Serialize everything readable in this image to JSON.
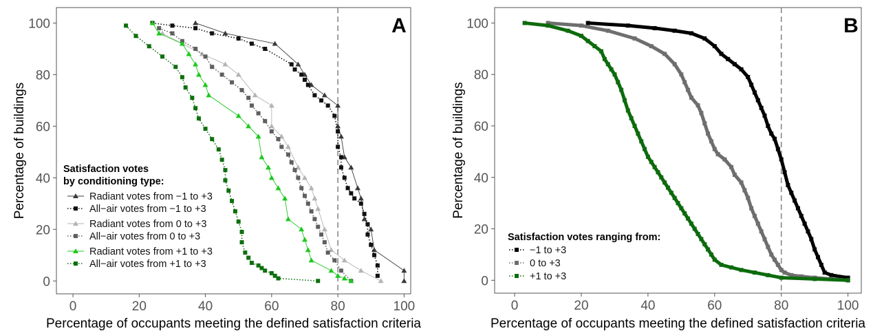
{
  "colors": {
    "radiant_m1": "#3a3a3a",
    "allair_m1": "#111111",
    "radiant_0": "#b4b4b4",
    "allair_0": "#5f5f5f",
    "radiant_p1": "#1ec81e",
    "allair_p1": "#0e6f0e",
    "B_m1": "#000000",
    "B_0": "#6e6e6e",
    "B_p1": "#0d6b0d",
    "refline": "#888888",
    "frame": "#555555"
  },
  "chart_data": [
    {
      "panel": "A",
      "type": "line",
      "xlabel": "Percentage of occupants meeting the defined satisfaction criteria",
      "ylabel": "Percentage of buildings",
      "xlim": [
        -5,
        102
      ],
      "ylim": [
        -5,
        106
      ],
      "xticks": [
        "0",
        "20",
        "40",
        "60",
        "80",
        "100"
      ],
      "yticks": [
        "0",
        "20",
        "40",
        "60",
        "80",
        "100"
      ],
      "reference_line_x": 80,
      "legend": {
        "position": "bottom-left",
        "title_line1": "Satisfaction votes",
        "title_line2": "by conditioning type:"
      },
      "series": [
        {
          "name": "Radiant votes from −1 to +3",
          "marker": "triangle",
          "dash": "solid",
          "color_key": "radiant_m1",
          "x": [
            37,
            46,
            61,
            68,
            70,
            72,
            76,
            80,
            80,
            81,
            82,
            84,
            86,
            87,
            88,
            90,
            91,
            100,
            100
          ],
          "y": [
            100,
            96,
            92,
            84,
            80,
            76,
            72,
            68,
            60,
            56,
            48,
            44,
            36,
            32,
            24,
            20,
            12,
            4,
            0
          ]
        },
        {
          "name": "All−air votes from −1 to +3",
          "marker": "square",
          "dash": "dotted",
          "color_key": "allair_m1",
          "x": [
            24,
            30,
            37,
            42,
            50,
            54,
            58,
            66,
            67,
            69,
            70,
            71,
            73,
            75,
            77,
            79,
            80,
            80,
            81,
            81,
            82,
            83,
            84,
            85,
            87,
            88,
            89,
            89,
            90,
            91,
            92,
            92
          ],
          "y": [
            100,
            99,
            98,
            96,
            94,
            92,
            90,
            84,
            82,
            80,
            78,
            76,
            72,
            70,
            68,
            64,
            58,
            52,
            48,
            44,
            40,
            36,
            34,
            32,
            30,
            26,
            22,
            18,
            14,
            10,
            6,
            2
          ]
        },
        {
          "name": "Radiant votes from 0 to +3",
          "marker": "triangle",
          "dash": "solid",
          "color_key": "radiant_0",
          "x": [
            27,
            33,
            39,
            46,
            50,
            55,
            60,
            60,
            63,
            65,
            68,
            70,
            72,
            73,
            74,
            76,
            78,
            82,
            87,
            93
          ],
          "y": [
            96,
            92,
            88,
            84,
            80,
            72,
            68,
            60,
            56,
            52,
            44,
            40,
            36,
            32,
            28,
            20,
            12,
            8,
            4,
            0
          ]
        },
        {
          "name": "All−air votes from 0 to +3",
          "marker": "square",
          "dash": "dotted",
          "color_key": "allair_0",
          "x": [
            26,
            30,
            33,
            37,
            40,
            42,
            45,
            48,
            51,
            53,
            54,
            56,
            58,
            60,
            62,
            63,
            65,
            66,
            67,
            68,
            69,
            70,
            71,
            72,
            73,
            74,
            75,
            76,
            77,
            79,
            81,
            84
          ],
          "y": [
            98,
            96,
            93,
            90,
            87,
            83,
            80,
            77,
            74,
            71,
            68,
            65,
            62,
            58,
            55,
            52,
            49,
            46,
            43,
            40,
            36,
            33,
            30,
            27,
            24,
            21,
            18,
            15,
            11,
            8,
            4,
            0
          ]
        },
        {
          "name": "Radiant votes from +1 to +3",
          "marker": "triangle",
          "dash": "solid",
          "color_key": "radiant_p1",
          "x": [
            24,
            26,
            33,
            35,
            37,
            38,
            40,
            41,
            50,
            53,
            56,
            57,
            59,
            60,
            62,
            64,
            65,
            69,
            70,
            71,
            72,
            78,
            80,
            82,
            84
          ],
          "y": [
            100,
            96,
            92,
            88,
            84,
            80,
            76,
            72,
            64,
            60,
            56,
            48,
            44,
            40,
            36,
            32,
            24,
            20,
            16,
            12,
            8,
            4,
            2,
            1,
            0
          ]
        },
        {
          "name": "All−air votes from +1 to +3",
          "marker": "square",
          "dash": "dotted",
          "color_key": "allair_p1",
          "x": [
            16,
            19,
            23,
            27,
            31,
            33,
            34,
            36,
            37,
            38,
            40,
            42,
            44,
            45,
            46,
            46,
            47,
            48,
            49,
            50,
            51,
            51,
            52,
            53,
            54,
            56,
            57,
            58,
            60,
            61,
            62,
            74
          ],
          "y": [
            99,
            95,
            91,
            87,
            83,
            79,
            75,
            71,
            67,
            63,
            59,
            55,
            51,
            47,
            43,
            39,
            35,
            31,
            27,
            23,
            19,
            15,
            11,
            9,
            7,
            6,
            5,
            4,
            3,
            2,
            1,
            0
          ]
        }
      ]
    },
    {
      "panel": "B",
      "type": "line",
      "xlabel": "Percentage of occupants meeting the defined satisfaction criteria",
      "ylabel": "Percentage of buildings",
      "xlim": [
        -6,
        104
      ],
      "ylim": [
        -5,
        106
      ],
      "xticks": [
        "0",
        "20",
        "40",
        "60",
        "80",
        "100"
      ],
      "yticks": [
        "0",
        "20",
        "40",
        "60",
        "80",
        "100"
      ],
      "reference_line_x": 80,
      "legend": {
        "position": "bottom-left",
        "title": "Satisfaction votes ranging from:"
      },
      "series": [
        {
          "name": "−1 to +3",
          "marker": "square",
          "color_key": "B_m1",
          "x": [
            22,
            34,
            42,
            48,
            53,
            57,
            60,
            62,
            64,
            66,
            68,
            70,
            71,
            72,
            73,
            74,
            75,
            76,
            77,
            78,
            79,
            80,
            81,
            82,
            83,
            84,
            85,
            86,
            87,
            88,
            89,
            90,
            91,
            92,
            93,
            95,
            100,
            100
          ],
          "y": [
            100,
            99,
            98,
            97,
            96,
            94,
            91,
            88,
            86,
            84,
            82,
            79,
            76,
            73,
            70,
            67,
            64,
            60,
            57,
            55,
            51,
            47,
            42,
            37,
            34,
            31,
            28,
            25,
            22,
            19,
            16,
            12,
            9,
            6,
            3,
            2,
            1,
            0
          ]
        },
        {
          "name": "0 to +3",
          "marker": "square",
          "color_key": "B_0",
          "x": [
            10,
            20,
            28,
            36,
            41,
            45,
            48,
            50,
            51,
            52,
            53,
            55,
            56,
            57,
            58,
            59,
            60,
            61,
            63,
            65,
            66,
            68,
            69,
            70,
            71,
            72,
            73,
            74,
            75,
            76,
            77,
            78,
            79,
            80,
            81,
            83,
            86,
            90,
            95,
            100
          ],
          "y": [
            100,
            99,
            97,
            94,
            91,
            88,
            84,
            80,
            77,
            74,
            71,
            68,
            65,
            61,
            57,
            54,
            51,
            49,
            47,
            44,
            41,
            38,
            35,
            32,
            28,
            25,
            22,
            19,
            16,
            13,
            10,
            8,
            6,
            4,
            3,
            2,
            1.5,
            1,
            0.5,
            0
          ]
        },
        {
          "name": "+1 to +3",
          "marker": "square",
          "color_key": "B_p1",
          "x": [
            3,
            10,
            16,
            20,
            22,
            24,
            26,
            27,
            28,
            29,
            30,
            31,
            32,
            33,
            34,
            35,
            36,
            37,
            38,
            39,
            40,
            41,
            42,
            43,
            44,
            45,
            46,
            47,
            48,
            49,
            50,
            51,
            52,
            53,
            54,
            55,
            56,
            57,
            58,
            59,
            60,
            62,
            65,
            68,
            72,
            76,
            80,
            90,
            100
          ],
          "y": [
            100,
            99,
            97,
            95,
            93,
            91,
            89,
            86,
            84,
            82,
            80,
            77,
            74,
            70,
            66,
            63,
            60,
            57,
            54,
            51,
            48,
            46,
            44,
            42,
            40,
            38,
            36,
            34,
            32,
            30,
            28,
            26,
            24,
            22,
            20,
            18,
            16,
            14,
            12,
            10,
            8,
            6,
            5,
            4,
            3,
            2,
            1,
            0.5,
            0
          ]
        }
      ]
    }
  ]
}
